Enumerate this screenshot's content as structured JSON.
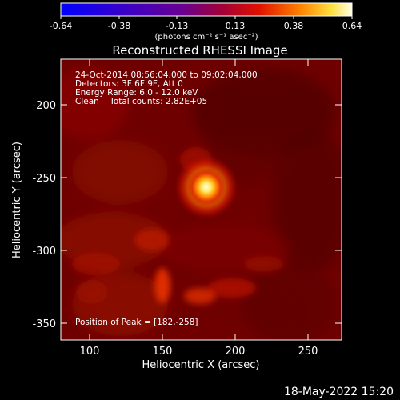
{
  "colorbar": {
    "ticks": [
      "-0.64",
      "-0.38",
      "-0.13",
      "0.13",
      "0.38",
      "0.64"
    ],
    "units": "(photons cm⁻² s⁻¹ asec⁻²)"
  },
  "image": {
    "title": "Reconstructed RHESSI Image",
    "info_lines": [
      "24-Oct-2014 08:56:04.000 to 09:02:04.000",
      "Detectors: 3F 6F 9F, Att 0",
      "Energy Range: 6.0 - 12.0 keV",
      "Clean    Total counts: 2.82E+05"
    ],
    "peak_label": "Position of Peak = [182,-258]",
    "peak_position": [
      182,
      -258
    ],
    "xlabel": "Heliocentric X (arcsec)",
    "ylabel": "Heliocentric Y (arcsec)",
    "xticks": [
      "100",
      "150",
      "200",
      "250"
    ],
    "yticks": [
      "-200",
      "-250",
      "-300",
      "-350"
    ],
    "xrange": [
      80,
      272
    ],
    "yrange": [
      -365,
      -173
    ]
  },
  "footer": {
    "timestamp": "18-May-2022 15:20"
  },
  "colors": {
    "background": "#000000",
    "axes": "#ffffff",
    "hot_peak": "#ffffc0"
  }
}
